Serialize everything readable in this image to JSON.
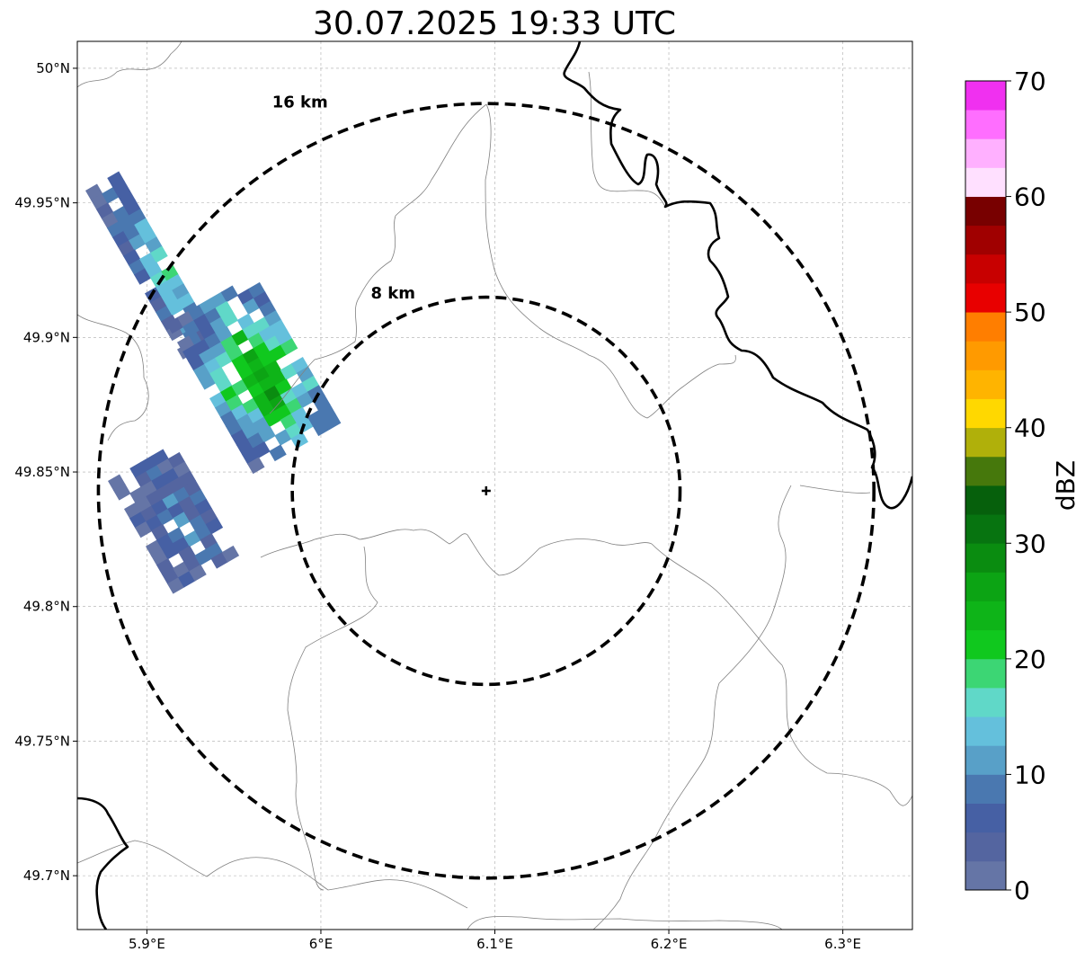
{
  "title": "30.07.2025 19:33 UTC",
  "map": {
    "lon_range": [
      5.86,
      6.34
    ],
    "lat_range": [
      49.68,
      50.01
    ],
    "xticks": [
      {
        "value": 5.9,
        "label": "5.9°E"
      },
      {
        "value": 6.0,
        "label": "6°E"
      },
      {
        "value": 6.1,
        "label": "6.1°E"
      },
      {
        "value": 6.2,
        "label": "6.2°E"
      },
      {
        "value": 6.3,
        "label": "6.3°E"
      }
    ],
    "yticks": [
      {
        "value": 50.0,
        "label": "50°N"
      },
      {
        "value": 49.95,
        "label": "49.95°N"
      },
      {
        "value": 49.9,
        "label": "49.9°N"
      },
      {
        "value": 49.85,
        "label": "49.85°N"
      },
      {
        "value": 49.8,
        "label": "49.8°N"
      },
      {
        "value": 49.75,
        "label": "49.75°N"
      },
      {
        "value": 49.7,
        "label": "49.7°N"
      }
    ],
    "gridlines": true,
    "radar_site": {
      "lon": 6.095,
      "lat": 49.843
    },
    "range_rings": [
      {
        "radius_km": 8,
        "label": "8 km"
      },
      {
        "radius_km": 16,
        "label": "16 km"
      }
    ]
  },
  "colorbar": {
    "label": "dBZ",
    "ticks": [
      "0",
      "10",
      "20",
      "30",
      "40",
      "50",
      "60",
      "70"
    ],
    "min": 0,
    "max": 70,
    "step": 2.5,
    "colors": [
      "#6575a6",
      "#5465a0",
      "#4660a4",
      "#4a78b0",
      "#58a0c8",
      "#64c0dc",
      "#60d8c8",
      "#3cd674",
      "#10c81e",
      "#0eb418",
      "#0ca414",
      "#0a8c10",
      "#077410",
      "#06600c",
      "#46780c",
      "#b0b00a",
      "#ffd800",
      "#ffb400",
      "#ff9a00",
      "#ff7e00",
      "#e80000",
      "#c80000",
      "#a00000",
      "#780000",
      "#ffe0ff",
      "#ffb0ff",
      "#ff6eff",
      "#f030f0"
    ]
  }
}
